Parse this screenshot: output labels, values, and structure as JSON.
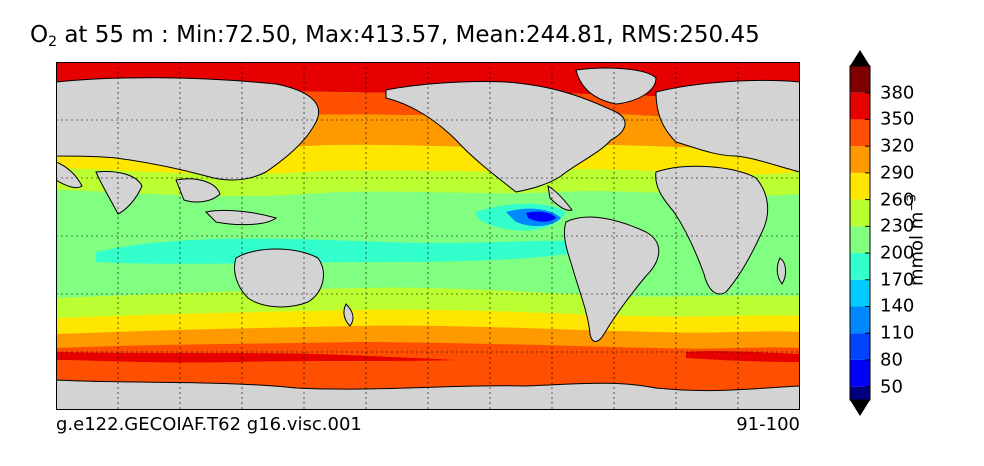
{
  "chart_data": {
    "type": "heatmap",
    "title_parts": {
      "variable": "O",
      "subscript": "2",
      "rest": " at 55 m : Min:72.50, Max:413.57, Mean:244.81, RMS:250.45"
    },
    "colorbar": {
      "label_text": "mmol m",
      "label_exp": "−3",
      "ticks": [
        "50",
        "80",
        "110",
        "140",
        "170",
        "200",
        "230",
        "260",
        "290",
        "320",
        "350",
        "380"
      ],
      "levels": [
        35,
        50,
        80,
        110,
        140,
        170,
        200,
        230,
        260,
        290,
        320,
        350,
        380,
        410
      ],
      "colors": [
        "#00007f",
        "#0000ff",
        "#0044ff",
        "#0088ff",
        "#00ccff",
        "#33ffcc",
        "#80ff80",
        "#bbff33",
        "#ffe600",
        "#ff9900",
        "#ff4f00",
        "#e60000",
        "#7f0000"
      ],
      "extend": "both"
    },
    "footer_left": "g.e122.GECOIAF.T62 g16.visc.001",
    "footer_right": "91-100",
    "colors": {
      "land": "#d3d3d3",
      "background": "#ffffff"
    }
  }
}
